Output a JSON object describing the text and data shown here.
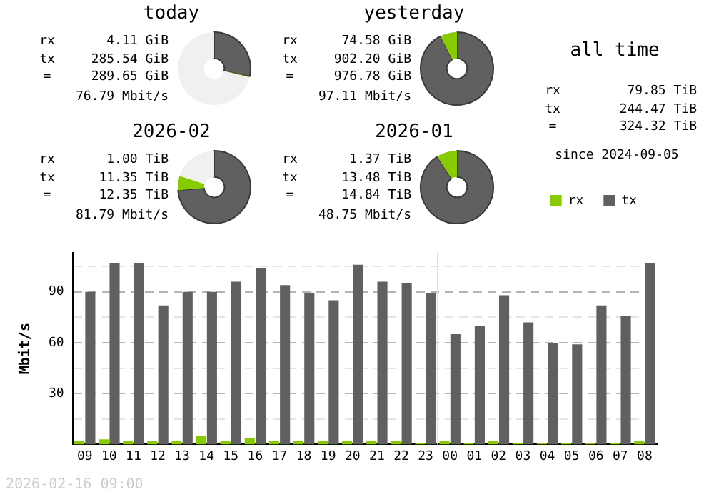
{
  "chart_data": [
    {
      "type": "donut",
      "title": "today",
      "categories": [
        null,
        null,
        null
      ],
      "values": [
        28.5,
        0.4,
        71.1
      ],
      "colors": [
        "#606060",
        "#88cc00",
        "#f0f0f0"
      ],
      "legend": false,
      "annotations": [
        "rx",
        "4.11 GiB",
        "tx",
        "285.54 GiB",
        "=",
        "289.65 GiB",
        "76.79 Mbit/s"
      ]
    },
    {
      "type": "donut",
      "title": "yesterday",
      "categories": [
        null,
        null
      ],
      "values": [
        92.4,
        7.6
      ],
      "colors": [
        "#606060",
        "#88cc00"
      ],
      "legend": false,
      "annotations": [
        "rx",
        "74.58 GiB",
        "tx",
        "902.20 GiB",
        "=",
        "976.78 GiB",
        "97.11 Mbit/s"
      ]
    },
    {
      "type": "other",
      "title": "all time",
      "annotations": [
        "rx",
        "79.85 TiB",
        "tx",
        "244.47 TiB",
        "=",
        "324.32 TiB",
        "since 2024-09-05"
      ]
    },
    {
      "type": "donut",
      "title": "2026-02",
      "categories": [
        null,
        null,
        null
      ],
      "values": [
        73.6,
        6.4,
        20
      ],
      "colors": [
        "#606060",
        "#88cc00",
        "#f0f0f0"
      ],
      "legend": false,
      "annotations": [
        "rx",
        "1.00 TiB",
        "tx",
        "11.35 TiB",
        "=",
        "12.35 TiB",
        "81.79 Mbit/s"
      ]
    },
    {
      "type": "donut",
      "title": "2026-01",
      "categories": [
        null,
        null
      ],
      "values": [
        90.8,
        9.2
      ],
      "colors": [
        "#606060",
        "#88cc00"
      ],
      "legend": false,
      "annotations": [
        "rx",
        "1.37 TiB",
        "tx",
        "13.48 TiB",
        "=",
        "14.84 TiB",
        "48.75 Mbit/s"
      ]
    },
    {
      "type": "bar",
      "ylabel": "Mbit/s",
      "categories": [
        "09",
        "10",
        "11",
        "12",
        "13",
        "14",
        "15",
        "16",
        "17",
        "18",
        "19",
        "20",
        "21",
        "22",
        "23",
        "00",
        "01",
        "02",
        "03",
        "04",
        "05",
        "06",
        "07",
        "08"
      ],
      "series": [
        {
          "name": "rx",
          "color": "#88cc00",
          "values": [
            2,
            3,
            2,
            2,
            2,
            5,
            2,
            4,
            2,
            2,
            2,
            2,
            2,
            2,
            1,
            2,
            1,
            2,
            1,
            1,
            1,
            1,
            1,
            2
          ]
        },
        {
          "name": "tx",
          "color": "#606060",
          "values": [
            90,
            107,
            107,
            82,
            90,
            90,
            96,
            104,
            94,
            89,
            85,
            106,
            96,
            95,
            89,
            65,
            70,
            88,
            72,
            60,
            59,
            82,
            76,
            107
          ]
        }
      ],
      "ylim": [
        0,
        113
      ],
      "yticks": [
        {
          "value": 15,
          "label": null
        },
        30,
        {
          "value": 45,
          "label": null
        },
        60,
        {
          "value": 75,
          "label": null
        },
        90,
        {
          "value": 105,
          "label": null
        }
      ],
      "grid": "y",
      "legend": "top right",
      "ref_lines": [
        {
          "axis": "x",
          "value": "00"
        }
      ],
      "annotations": [
        "2026-02-16 09:00"
      ]
    }
  ]
}
